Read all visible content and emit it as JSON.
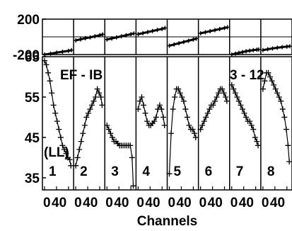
{
  "chart_data": {
    "type": "line",
    "annotations": {
      "left_label": "EF - IB",
      "right_label": "3 - 12",
      "corner_label": "(LL)"
    },
    "xlabel": "Channels",
    "x_tick_labels": [
      "0",
      "40"
    ],
    "top_panel": {
      "ylim": [
        -200,
        200
      ],
      "y_tick_labels": [
        "200",
        "-200"
      ]
    },
    "bottom_panel": {
      "ylim": [
        32,
        65
      ],
      "y_tick_labels": [
        "65",
        "55",
        "45",
        "35"
      ]
    },
    "subplots": [
      {
        "label": "1",
        "phase": [
          [
            0,
            -200
          ],
          [
            10,
            -190
          ],
          [
            20,
            -178
          ],
          [
            30,
            -168
          ],
          [
            40,
            -158
          ],
          [
            45,
            -150
          ]
        ],
        "amplitude": [
          [
            0,
            64
          ],
          [
            3,
            63
          ],
          [
            6,
            61
          ],
          [
            9,
            59
          ],
          [
            12,
            56
          ],
          [
            15,
            53
          ],
          [
            18,
            51
          ],
          [
            21,
            49
          ],
          [
            24,
            47
          ],
          [
            27,
            45
          ],
          [
            30,
            43
          ],
          [
            33,
            42
          ],
          [
            36,
            41
          ],
          [
            39,
            40
          ],
          [
            42,
            39.5
          ],
          [
            44,
            38
          ]
        ]
      },
      {
        "label": "2",
        "phase": [
          [
            0,
            -40
          ],
          [
            8,
            -28
          ],
          [
            16,
            -16
          ],
          [
            24,
            -6
          ],
          [
            32,
            6
          ],
          [
            40,
            18
          ],
          [
            45,
            28
          ]
        ],
        "amplitude": [
          [
            0,
            38
          ],
          [
            3,
            40
          ],
          [
            6,
            42
          ],
          [
            9,
            44
          ],
          [
            12,
            46
          ],
          [
            15,
            48
          ],
          [
            18,
            50
          ],
          [
            21,
            51
          ],
          [
            24,
            52
          ],
          [
            27,
            53
          ],
          [
            30,
            54
          ],
          [
            33,
            55
          ],
          [
            36,
            57
          ],
          [
            39,
            56
          ],
          [
            42,
            55
          ],
          [
            44,
            53
          ]
        ]
      },
      {
        "label": "3",
        "phase": [
          [
            0,
            -30
          ],
          [
            8,
            -18
          ],
          [
            16,
            -6
          ],
          [
            24,
            6
          ],
          [
            32,
            18
          ],
          [
            40,
            30
          ],
          [
            45,
            38
          ]
        ],
        "amplitude": [
          [
            0,
            48
          ],
          [
            3,
            47
          ],
          [
            6,
            46
          ],
          [
            9,
            45
          ],
          [
            12,
            44
          ],
          [
            15,
            44
          ],
          [
            18,
            43.5
          ],
          [
            21,
            43
          ],
          [
            24,
            43
          ],
          [
            27,
            43
          ],
          [
            30,
            43
          ],
          [
            33,
            43
          ],
          [
            36,
            43
          ],
          [
            39,
            43
          ],
          [
            42,
            40
          ],
          [
            44,
            33
          ]
        ]
      },
      {
        "label": "4",
        "phase": [
          [
            0,
            30
          ],
          [
            8,
            42
          ],
          [
            16,
            54
          ],
          [
            24,
            66
          ],
          [
            32,
            78
          ],
          [
            40,
            90
          ],
          [
            45,
            100
          ]
        ],
        "amplitude": [
          [
            0,
            52
          ],
          [
            3,
            54
          ],
          [
            6,
            55
          ],
          [
            9,
            53
          ],
          [
            12,
            51
          ],
          [
            15,
            49
          ],
          [
            18,
            48
          ],
          [
            21,
            48
          ],
          [
            24,
            48.5
          ],
          [
            27,
            49
          ],
          [
            30,
            50
          ],
          [
            33,
            52
          ],
          [
            36,
            53
          ],
          [
            39,
            52
          ],
          [
            42,
            50
          ],
          [
            44,
            48
          ]
        ]
      },
      {
        "label": "5",
        "phase": [
          [
            0,
            -100
          ],
          [
            8,
            -86
          ],
          [
            16,
            -72
          ],
          [
            24,
            -58
          ],
          [
            32,
            -44
          ],
          [
            40,
            -30
          ],
          [
            45,
            -20
          ]
        ],
        "amplitude": [
          [
            0,
            36
          ],
          [
            3,
            46
          ],
          [
            6,
            52
          ],
          [
            9,
            55
          ],
          [
            12,
            57
          ],
          [
            15,
            57
          ],
          [
            18,
            56
          ],
          [
            21,
            55
          ],
          [
            24,
            54
          ],
          [
            27,
            52
          ],
          [
            30,
            50
          ],
          [
            33,
            48
          ],
          [
            36,
            47
          ],
          [
            39,
            47
          ],
          [
            42,
            46
          ],
          [
            44,
            45
          ]
        ]
      },
      {
        "label": "6",
        "phase": [
          [
            0,
            40
          ],
          [
            8,
            52
          ],
          [
            16,
            64
          ],
          [
            24,
            76
          ],
          [
            32,
            88
          ],
          [
            40,
            100
          ],
          [
            45,
            108
          ]
        ],
        "amplitude": [
          [
            0,
            47
          ],
          [
            3,
            48
          ],
          [
            6,
            49
          ],
          [
            9,
            50
          ],
          [
            12,
            51
          ],
          [
            15,
            52
          ],
          [
            18,
            53
          ],
          [
            21,
            53
          ],
          [
            24,
            54
          ],
          [
            27,
            55
          ],
          [
            30,
            56
          ],
          [
            33,
            57
          ],
          [
            36,
            57
          ],
          [
            39,
            56
          ],
          [
            42,
            55
          ],
          [
            44,
            54
          ]
        ]
      },
      {
        "label": "7",
        "phase": [
          [
            0,
            -200
          ],
          [
            6,
            -190
          ],
          [
            12,
            -181
          ],
          [
            18,
            -172
          ],
          [
            24,
            -163
          ],
          [
            30,
            -156
          ],
          [
            36,
            -150
          ],
          [
            42,
            -145
          ],
          [
            45,
            -143
          ]
        ],
        "amplitude": [
          [
            0,
            58
          ],
          [
            3,
            57
          ],
          [
            6,
            56
          ],
          [
            9,
            55
          ],
          [
            12,
            54
          ],
          [
            15,
            53
          ],
          [
            18,
            52
          ],
          [
            21,
            51
          ],
          [
            24,
            50
          ],
          [
            27,
            49
          ],
          [
            30,
            49
          ],
          [
            33,
            48
          ],
          [
            36,
            47
          ],
          [
            39,
            45
          ],
          [
            42,
            44
          ],
          [
            44,
            43
          ]
        ]
      },
      {
        "label": "8",
        "phase": [
          [
            0,
            -150
          ],
          [
            8,
            -140
          ],
          [
            16,
            -131
          ],
          [
            24,
            -123
          ],
          [
            32,
            -116
          ],
          [
            40,
            -110
          ],
          [
            45,
            -106
          ]
        ],
        "amplitude": [
          [
            0,
            57
          ],
          [
            3,
            59
          ],
          [
            6,
            61
          ],
          [
            9,
            61
          ],
          [
            12,
            60
          ],
          [
            15,
            59
          ],
          [
            18,
            58
          ],
          [
            21,
            57
          ],
          [
            24,
            56
          ],
          [
            27,
            55
          ],
          [
            30,
            54
          ],
          [
            33,
            52
          ],
          [
            36,
            50
          ],
          [
            39,
            47
          ],
          [
            42,
            43
          ],
          [
            44,
            39
          ]
        ]
      }
    ]
  }
}
